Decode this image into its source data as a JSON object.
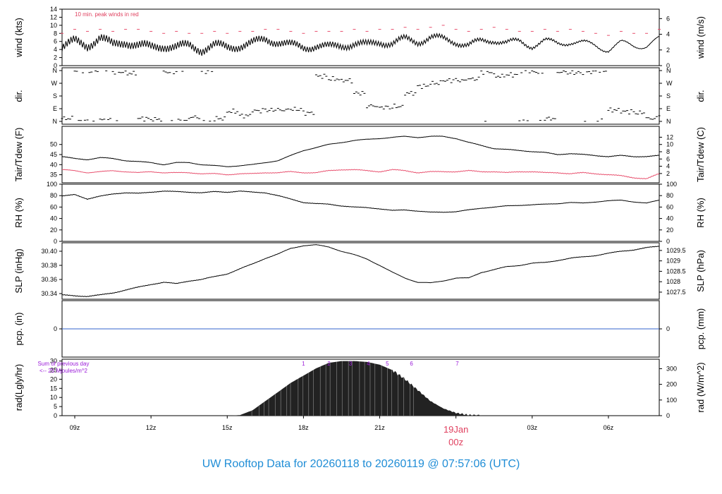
{
  "footer": {
    "title": "UW Rooftop Data for 20260118  to  20260119 @ 07:57:06  (UTC)"
  },
  "colors": {
    "black": "#000000",
    "red": "#e8506e",
    "blue": "#3366cc",
    "purple": "#9a1ad9",
    "pink": "#e0405f",
    "footer": "#1f8dd6"
  },
  "chart_data": [
    {
      "type": "line",
      "ylabel": "wind (kts)",
      "ylabel_right": "wind (m/s)",
      "ylim": [
        0,
        14
      ],
      "yticks_left": [
        "0",
        "2",
        "4",
        "6",
        "8",
        "10",
        "12",
        "14"
      ],
      "yticks_right": [
        "0",
        "2",
        "4",
        "6"
      ],
      "annotation": "10 min. peak winds in red",
      "x": [
        8.5,
        9,
        9.5,
        10,
        10.5,
        11,
        11.5,
        12,
        12.5,
        13,
        13.5,
        14,
        14.5,
        15,
        15.5,
        16,
        16.5,
        17,
        17.5,
        18,
        18.5,
        19,
        19.5,
        20,
        20.5,
        21,
        21.5,
        22,
        22.5,
        23,
        23.5,
        24,
        24.5,
        25,
        25.5,
        26,
        26.5,
        27,
        27.5,
        28,
        28.5,
        29,
        29.5,
        30,
        30.5,
        31,
        31.5,
        32
      ],
      "series": [
        {
          "values": [
            4.5,
            6,
            5,
            7,
            5,
            6,
            5,
            4.5,
            5,
            4.5,
            5,
            4,
            5,
            4.5,
            5,
            5.5,
            6.5,
            6,
            5,
            4.5,
            5,
            4.5,
            5,
            5.5,
            5,
            6,
            5.5,
            6.5,
            6,
            7,
            6.5,
            6,
            5,
            6,
            6.5,
            5.5,
            6,
            5,
            6,
            5.5,
            6,
            5.5,
            5,
            4,
            5.5,
            5,
            5,
            6.5
          ]
        },
        {
          "values": [
            8,
            9,
            8.5,
            9,
            8.5,
            9,
            9,
            8.5,
            8,
            8.5,
            8,
            8,
            8.5,
            8,
            8.5,
            8.5,
            9,
            9,
            8.5,
            8,
            8.5,
            8.5,
            8.5,
            9,
            8.5,
            9,
            9,
            9.5,
            9,
            9.5,
            10,
            9,
            8.5,
            9,
            9.5,
            9,
            8.5,
            8.5,
            9,
            8.5,
            9,
            8.5,
            8,
            7.5,
            8.5,
            8,
            8,
            9
          ]
        }
      ]
    },
    {
      "type": "scatter",
      "ylabel": "dir.",
      "ylabel_right": "dir.",
      "yticks_left": [
        "N",
        "E",
        "S",
        "W",
        "N"
      ],
      "yticks_right": [
        "N",
        "E",
        "S",
        "W",
        "N"
      ],
      "x": [
        8.5,
        9,
        9.5,
        10,
        10.5,
        11,
        11.5,
        12,
        12.5,
        13,
        13.5,
        14,
        14.5,
        15,
        15.5,
        16,
        16.5,
        17,
        17.5,
        18,
        18.5,
        19,
        19.5,
        20,
        20.5,
        21,
        21.5,
        22,
        22.5,
        23,
        23.5,
        24,
        24.5,
        25,
        25.5,
        26,
        26.5,
        27,
        27.5,
        28,
        28.5,
        29,
        29.5,
        30,
        30.5,
        31,
        31.5,
        32
      ],
      "values": [
        20,
        360,
        355,
        10,
        350,
        340,
        20,
        15,
        350,
        5,
        30,
        355,
        20,
        70,
        40,
        75,
        80,
        80,
        85,
        60,
        320,
        300,
        290,
        200,
        110,
        100,
        105,
        200,
        250,
        270,
        290,
        290,
        300,
        350,
        320,
        330,
        0,
        350,
        20,
        350,
        345,
        350,
        0,
        80,
        70,
        60,
        20,
        40
      ]
    },
    {
      "type": "line",
      "ylabel": "Tair/Tdew (F)",
      "ylabel_right": "Tair/Tdew (C)",
      "ylim": [
        31,
        59
      ],
      "yticks_left": [
        "35",
        "40",
        "45",
        "50"
      ],
      "yticks_right": [
        "2",
        "4",
        "6",
        "8",
        "10",
        "12"
      ],
      "x": [
        8.5,
        9,
        9.5,
        10,
        10.5,
        11,
        11.5,
        12,
        12.5,
        13,
        13.5,
        14,
        14.5,
        15,
        15.5,
        16,
        16.5,
        17,
        17.5,
        18,
        18.5,
        19,
        19.5,
        20,
        20.5,
        21,
        21.5,
        22,
        22.5,
        23,
        23.5,
        24,
        24.5,
        25,
        25.5,
        26,
        26.5,
        27,
        27.5,
        28,
        28.5,
        29,
        29.5,
        30,
        30.5,
        31,
        31.5,
        32
      ],
      "series": [
        {
          "values": [
            44,
            43,
            42.5,
            43.5,
            43,
            42,
            41.5,
            41,
            40,
            41,
            41,
            40,
            39.5,
            39,
            39.5,
            40,
            41,
            42,
            44.5,
            47,
            48.5,
            50,
            51,
            52,
            52.5,
            53,
            53.5,
            54,
            53.5,
            54,
            54,
            53,
            51,
            49.5,
            48,
            47.5,
            47,
            46.5,
            46,
            45,
            45.5,
            45,
            44.5,
            44,
            44.5,
            44,
            44,
            44.5
          ]
        },
        {
          "values": [
            37.5,
            37,
            36,
            36.5,
            37,
            36.5,
            36,
            36.5,
            36,
            36,
            36,
            35.5,
            35.5,
            35,
            35.5,
            35.5,
            36,
            36,
            36.5,
            36,
            36,
            37,
            37.5,
            37.5,
            37,
            36.5,
            37.5,
            37,
            36,
            36.5,
            36.5,
            36.5,
            37,
            36.5,
            36.5,
            36,
            36.5,
            36.5,
            36,
            36,
            35.5,
            36,
            35.5,
            35,
            34.5,
            33.5,
            33,
            35.5
          ]
        }
      ]
    },
    {
      "type": "line",
      "ylabel": "RH (%)",
      "ylabel_right": "RH (%)",
      "ylim": [
        0,
        100
      ],
      "yticks_left": [
        "0",
        "20",
        "40",
        "60",
        "80",
        "100"
      ],
      "yticks_right": [
        "0",
        "20",
        "40",
        "60",
        "80",
        "100"
      ],
      "x": [
        8.5,
        9,
        9.5,
        10,
        10.5,
        11,
        11.5,
        12,
        12.5,
        13,
        13.5,
        14,
        14.5,
        15,
        15.5,
        16,
        16.5,
        17,
        17.5,
        18,
        18.5,
        19,
        19.5,
        20,
        20.5,
        21,
        21.5,
        22,
        22.5,
        23,
        23.5,
        24,
        24.5,
        25,
        25.5,
        26,
        26.5,
        27,
        27.5,
        28,
        28.5,
        29,
        29.5,
        30,
        30.5,
        31,
        31.5,
        32
      ],
      "values": [
        79,
        82,
        74,
        79,
        83,
        85,
        84,
        86,
        88,
        87,
        86,
        85,
        87,
        86,
        88,
        86,
        85,
        80,
        74,
        68,
        66,
        65,
        62,
        60,
        59,
        57,
        54,
        55,
        53,
        51,
        51,
        52,
        55,
        58,
        60,
        62,
        63,
        64,
        65,
        66,
        68,
        67,
        69,
        71,
        72,
        69,
        67,
        72
      ]
    },
    {
      "type": "line",
      "ylabel": "SLP (inHg)",
      "ylabel_right": "SLP (hPa)",
      "ylim": [
        30.332,
        30.412
      ],
      "yticks_left": [
        "30.34",
        "30.36",
        "30.38",
        "30.40"
      ],
      "yticks_right": [
        "1027.5",
        "1028",
        "1028.5",
        "1029",
        "1029.5"
      ],
      "x": [
        8.5,
        9,
        9.5,
        10,
        10.5,
        11,
        11.5,
        12,
        12.5,
        13,
        13.5,
        14,
        14.5,
        15,
        15.5,
        16,
        16.5,
        17,
        17.5,
        18,
        18.5,
        19,
        19.5,
        20,
        20.5,
        21,
        21.5,
        22,
        22.5,
        23,
        23.5,
        24,
        24.5,
        25,
        25.5,
        26,
        26.5,
        27,
        27.5,
        28,
        28.5,
        29,
        29.5,
        30,
        30.5,
        31,
        31.5,
        32
      ],
      "values": [
        30.338,
        30.337,
        30.336,
        30.338,
        30.341,
        30.345,
        30.349,
        30.353,
        30.356,
        30.354,
        30.358,
        30.36,
        30.364,
        30.368,
        30.375,
        30.382,
        30.39,
        30.396,
        30.404,
        30.408,
        30.409,
        30.406,
        30.4,
        30.395,
        30.389,
        30.38,
        30.37,
        30.362,
        30.356,
        30.355,
        30.358,
        30.362,
        30.362,
        30.37,
        30.374,
        30.378,
        30.38,
        30.383,
        30.384,
        30.387,
        30.39,
        30.392,
        30.394,
        30.397,
        30.4,
        30.402,
        30.405,
        30.407
      ]
    },
    {
      "type": "line",
      "ylabel": "pcp. (in)",
      "ylabel_right": "pcp. (mm)",
      "yticks_left": [
        "0"
      ],
      "yticks_right": [
        "0"
      ],
      "values": [
        0
      ]
    },
    {
      "type": "area",
      "ylabel": "rad(Lgly/hr)",
      "ylabel_right": "rad (W/m^2)",
      "ylim": [
        0,
        31
      ],
      "yticks_left": [
        "0",
        "5",
        "10",
        "15",
        "20",
        "25",
        "30"
      ],
      "yticks_right": [
        "0",
        "100",
        "200",
        "300"
      ],
      "annotation": "Sum of previous day\n<-- 25 Mjoules/m^2",
      "hour_marks": [
        "1",
        "2",
        "3",
        "4",
        "5",
        "6",
        "7"
      ],
      "x": [
        15,
        15.5,
        16,
        16.5,
        17,
        17.5,
        18,
        18.5,
        19,
        19.5,
        20,
        20.5,
        21,
        21.5,
        22,
        22.5,
        23,
        23.5,
        24,
        24.5,
        25
      ],
      "values": [
        0,
        0.3,
        3,
        8,
        13,
        18,
        22,
        26,
        29,
        30,
        30,
        29.5,
        28,
        25,
        20,
        14,
        8,
        4,
        1.5,
        0.3,
        0
      ],
      "xticks": [
        "09z",
        "12z",
        "15z",
        "18z",
        "21z",
        "19Jan",
        "00z",
        "03z",
        "06z"
      ]
    }
  ]
}
